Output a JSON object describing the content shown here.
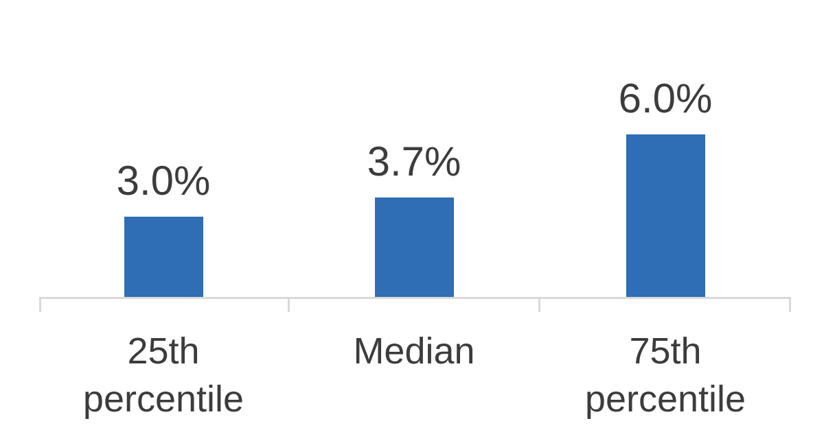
{
  "chart_data": {
    "type": "bar",
    "title": "",
    "xlabel": "",
    "ylabel": "",
    "categories": [
      "25th percentile",
      "Median",
      "75th percentile"
    ],
    "values": [
      3.0,
      3.7,
      6.0
    ],
    "value_labels": [
      "3.0%",
      "3.7%",
      "6.0%"
    ],
    "ylim": [
      0,
      7
    ],
    "grid": false,
    "legend": false,
    "axis_ticks": "bottom-outside, 4 ticks bounding 3 equal category slots",
    "colors": {
      "bar": "#2F6DB5",
      "axis": "#D9D9D9",
      "text": "#3C3C3C",
      "background": "#FFFFFF"
    }
  }
}
